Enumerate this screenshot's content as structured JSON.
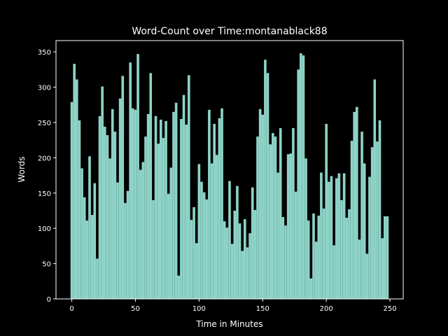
{
  "chart_data": {
    "type": "bar",
    "title": "Word-Count over Time:montanablack88",
    "xlabel": "Time in Minutes",
    "ylabel": "Words",
    "color": "#8dd3c7",
    "x": [
      0,
      2,
      4,
      6,
      8,
      10,
      12,
      14,
      16,
      18,
      20,
      22,
      24,
      26,
      28,
      30,
      32,
      34,
      36,
      38,
      40,
      42,
      44,
      46,
      48,
      50,
      52,
      54,
      56,
      58,
      60,
      62,
      64,
      66,
      68,
      70,
      72,
      74,
      76,
      78,
      80,
      82,
      84,
      86,
      88,
      90,
      92,
      94,
      96,
      98,
      100,
      102,
      104,
      106,
      108,
      110,
      112,
      114,
      116,
      118,
      120,
      122,
      124,
      126,
      128,
      130,
      132,
      134,
      136,
      138,
      140,
      142,
      144,
      146,
      148,
      150,
      152,
      154,
      156,
      158,
      160,
      162,
      164,
      166,
      168,
      170,
      172,
      174,
      176,
      178,
      180,
      182,
      184,
      186,
      188,
      190,
      192,
      194,
      196,
      198,
      200,
      202,
      204,
      206,
      208,
      210,
      212,
      214,
      216,
      218,
      220,
      222,
      224,
      226,
      228,
      230,
      232,
      234,
      236,
      238,
      240,
      242,
      244,
      246,
      248
    ],
    "values": [
      279,
      333,
      311,
      253,
      185,
      144,
      111,
      202,
      119,
      164,
      57,
      259,
      301,
      244,
      232,
      199,
      269,
      237,
      165,
      284,
      316,
      136,
      153,
      335,
      270,
      268,
      347,
      183,
      194,
      230,
      262,
      320,
      140,
      259,
      220,
      254,
      228,
      252,
      149,
      186,
      265,
      278,
      33,
      255,
      289,
      247,
      317,
      112,
      130,
      79,
      191,
      166,
      151,
      141,
      268,
      192,
      248,
      204,
      256,
      270,
      110,
      101,
      167,
      78,
      125,
      160,
      107,
      68,
      113,
      73,
      93,
      158,
      126,
      230,
      269,
      261,
      339,
      320,
      219,
      235,
      230,
      179,
      242,
      116,
      104,
      205,
      206,
      242,
      152,
      325,
      348,
      345,
      199,
      111,
      29,
      121,
      81,
      118,
      179,
      128,
      248,
      166,
      174,
      76,
      171,
      178,
      140,
      178,
      115,
      127,
      224,
      265,
      272,
      84,
      237,
      192,
      64,
      173,
      215,
      311,
      223,
      253,
      86,
      117,
      117
    ],
    "xlim": [
      -12.4,
      260.4
    ],
    "xticks": [
      0,
      50,
      100,
      150,
      200,
      250
    ],
    "ylim": [
      0,
      366
    ],
    "yticks": [
      0,
      50,
      100,
      150,
      200,
      250,
      300,
      350
    ]
  }
}
